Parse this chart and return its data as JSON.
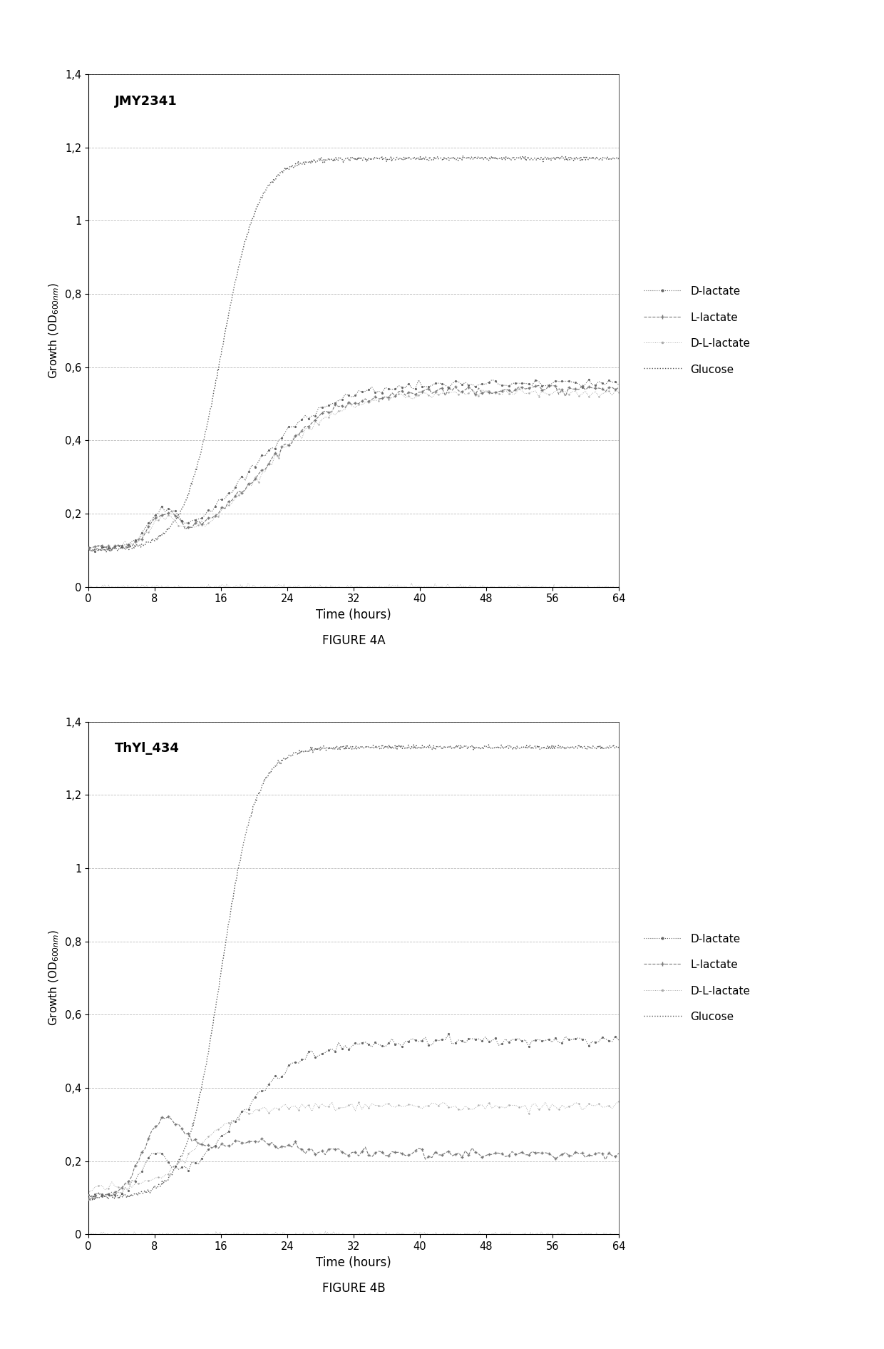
{
  "fig4a": {
    "title": "JMY2341",
    "xlabel": "Time (hours)",
    "ylim": [
      0,
      1.4
    ],
    "xlim": [
      0,
      64
    ],
    "yticks": [
      0,
      0.2,
      0.4,
      0.6,
      0.8,
      1.0,
      1.2,
      1.4
    ],
    "xticks": [
      0,
      8,
      16,
      24,
      32,
      40,
      48,
      56,
      64
    ],
    "ytick_labels": [
      "0",
      "0,2",
      "0,4",
      "0,6",
      "0,8",
      "1",
      "1,2",
      "1,4"
    ]
  },
  "fig4b": {
    "title": "ThYl_434",
    "xlabel": "Time (hours)",
    "ylim": [
      0,
      1.4
    ],
    "xlim": [
      0,
      64
    ],
    "yticks": [
      0,
      0.2,
      0.4,
      0.6,
      0.8,
      1.0,
      1.2,
      1.4
    ],
    "xticks": [
      0,
      8,
      16,
      24,
      32,
      40,
      48,
      56,
      64
    ],
    "ytick_labels": [
      "0",
      "0,2",
      "0,4",
      "0,6",
      "0,8",
      "1",
      "1,2",
      "1,4"
    ]
  },
  "figure_caption_4a": "FIGURE 4A",
  "figure_caption_4b": "FIGURE 4B",
  "background_color": "#ffffff",
  "grid_color": "#bbbbbb",
  "line_color_glucose": "#555555",
  "line_color_d": "#666666",
  "line_color_l": "#777777",
  "line_color_dl": "#aaaaaa",
  "legend_labels": [
    "D-lactate",
    "L-lactate",
    "D-L-lactate",
    "Glucose"
  ]
}
